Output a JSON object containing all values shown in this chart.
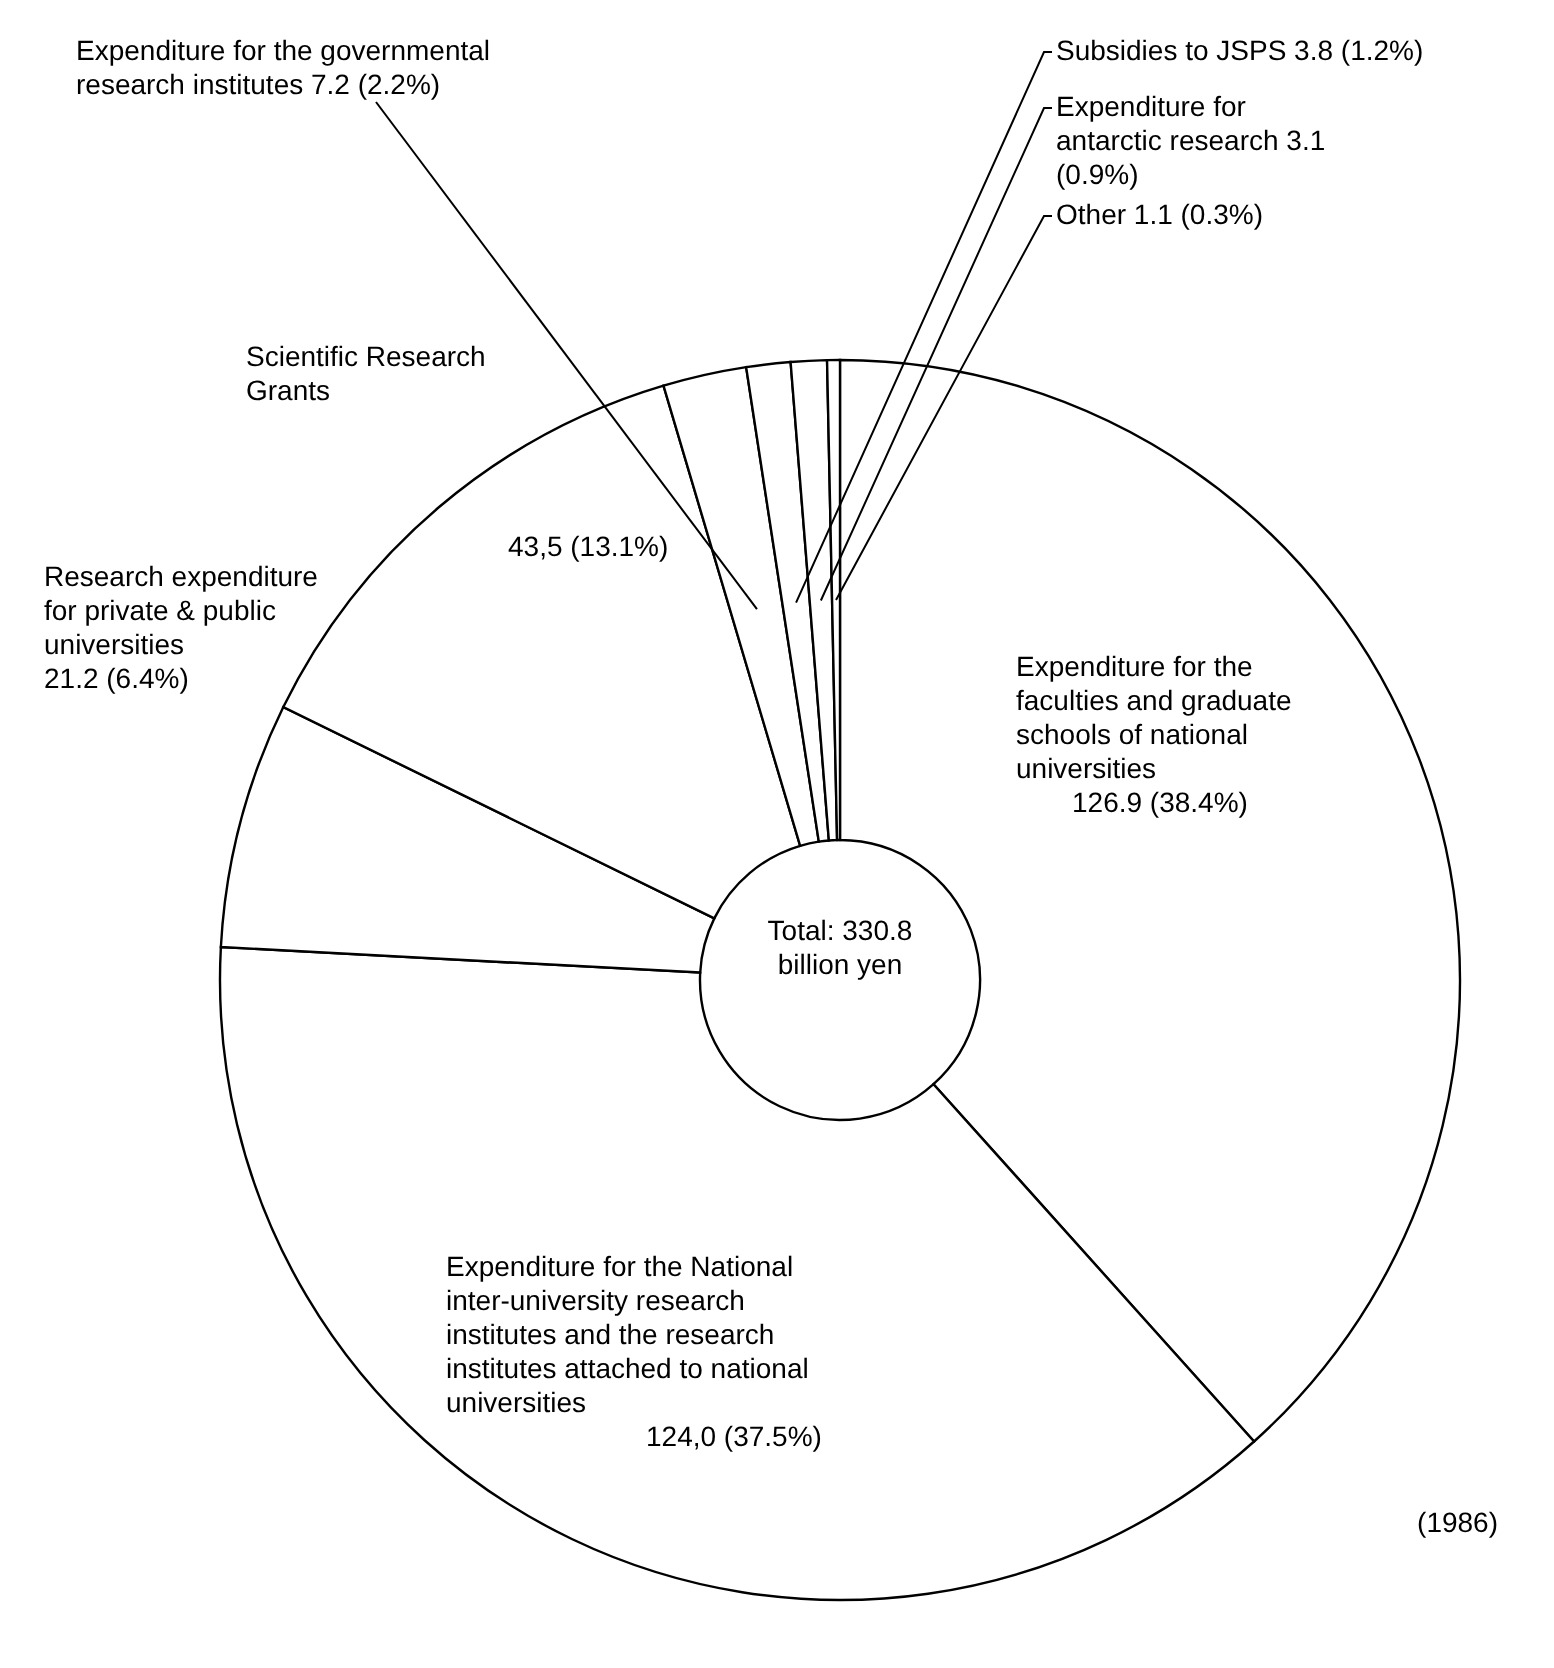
{
  "chart_data": {
    "type": "donut",
    "categories": [
      "Expenditure for the faculties and graduate schools of national universities",
      "Expenditure for the National inter-university research institutes and the research institutes attached to national universities",
      "Research expenditure for private & public universities",
      "Scientific Research Grants",
      "Expenditure for the governmental research institutes",
      "Subsidies to JSPS",
      "Expenditure for antarctic research",
      "Other"
    ],
    "values": [
      126.9,
      124.0,
      21.2,
      43.5,
      7.2,
      3.8,
      3.1,
      1.1
    ],
    "value_labels": [
      "126.9 (38.4%)",
      "124,0 (37.5%)",
      "21.2 (6.4%)",
      "43,5 (13.1%)",
      "7.2 (2.2%)",
      "3.8 (1.2%)",
      "3.1 (0.9%)",
      "1.1 (0.3%)"
    ],
    "colors": [
      "#ffffff",
      "#ffffff",
      "#ffffff",
      "#ffffff",
      "#ffffff",
      "#ffffff",
      "#ffffff",
      "#ffffff"
    ],
    "annotations": [
      "Total: 330.8 billion yen",
      "(1986)"
    ]
  }
}
